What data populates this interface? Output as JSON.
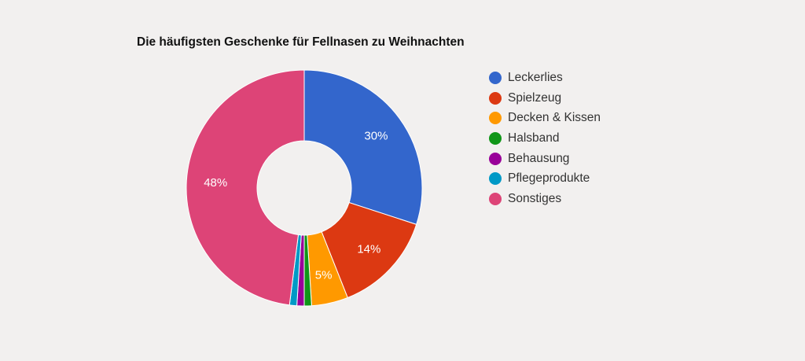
{
  "chart_data": {
    "type": "pie",
    "donut": true,
    "title": "Die häufigsten Geschenke für Fellnasen zu Weihnachten",
    "categories": [
      "Leckerlies",
      "Spielzeug",
      "Decken & Kissen",
      "Halsband",
      "Behausung",
      "Pflegeprodukte",
      "Sonstiges"
    ],
    "values": [
      30,
      14,
      5,
      1,
      1,
      1,
      48
    ],
    "colors": [
      "#3366cc",
      "#dc3912",
      "#ff9900",
      "#109618",
      "#990099",
      "#0099c6",
      "#dd4477"
    ],
    "data_labels": [
      "30%",
      "14%",
      "5%",
      "",
      "",
      "",
      "48%"
    ],
    "legend_position": "right"
  },
  "background": "#f2f0ef"
}
